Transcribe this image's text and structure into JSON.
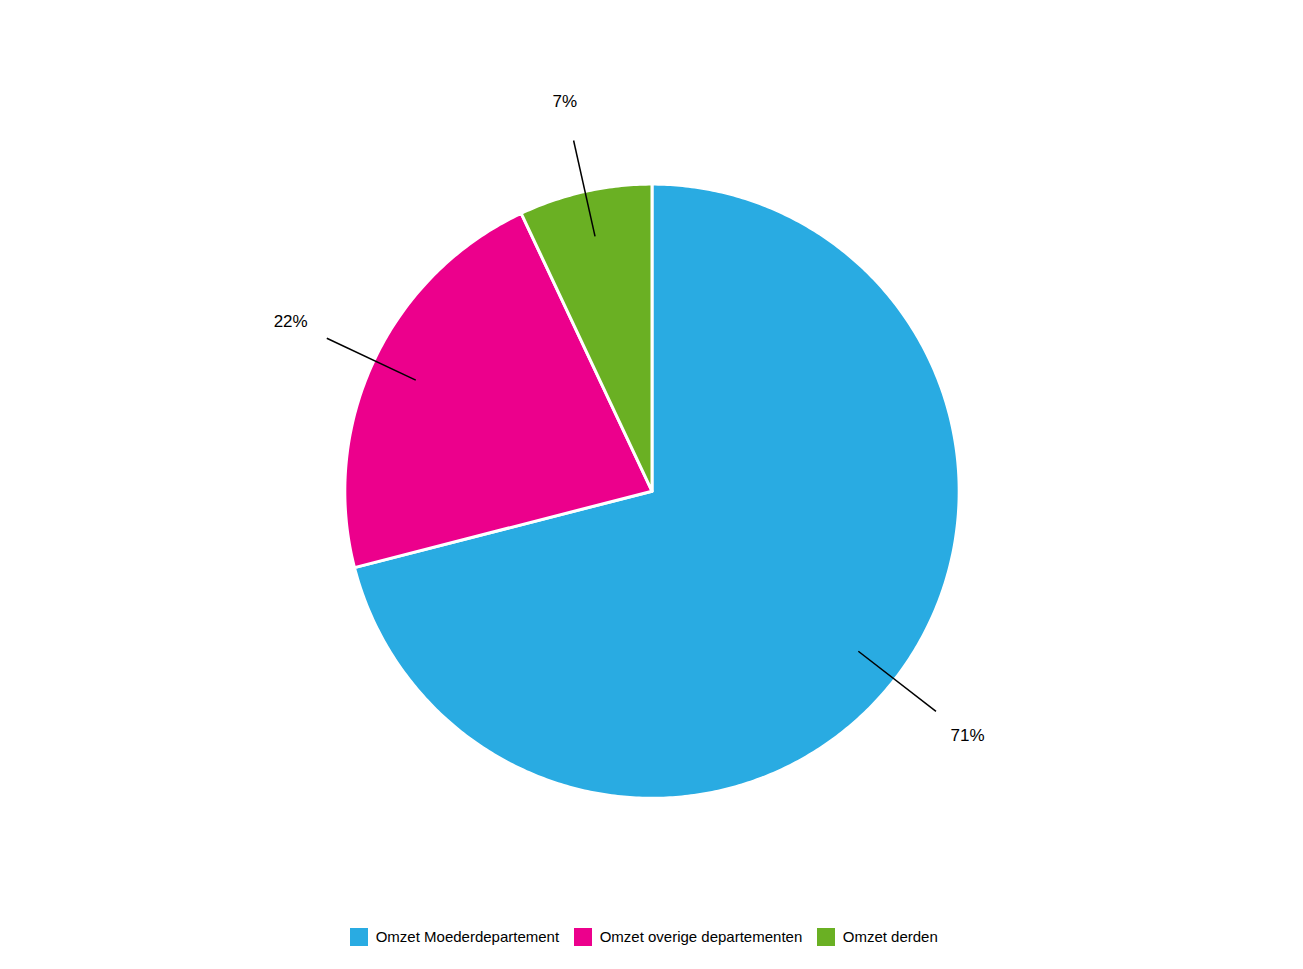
{
  "chart_data": {
    "type": "pie",
    "categories": [
      "Omzet Moederdepartement",
      "Omzet overige departementen",
      "Omzet derden"
    ],
    "values": [
      71,
      22,
      7
    ],
    "value_labels": [
      "71%",
      "22%",
      "7%"
    ],
    "colors": [
      "#29ABE2",
      "#EC008C",
      "#6AB023"
    ],
    "data_labels": true,
    "legend": "bottom"
  }
}
